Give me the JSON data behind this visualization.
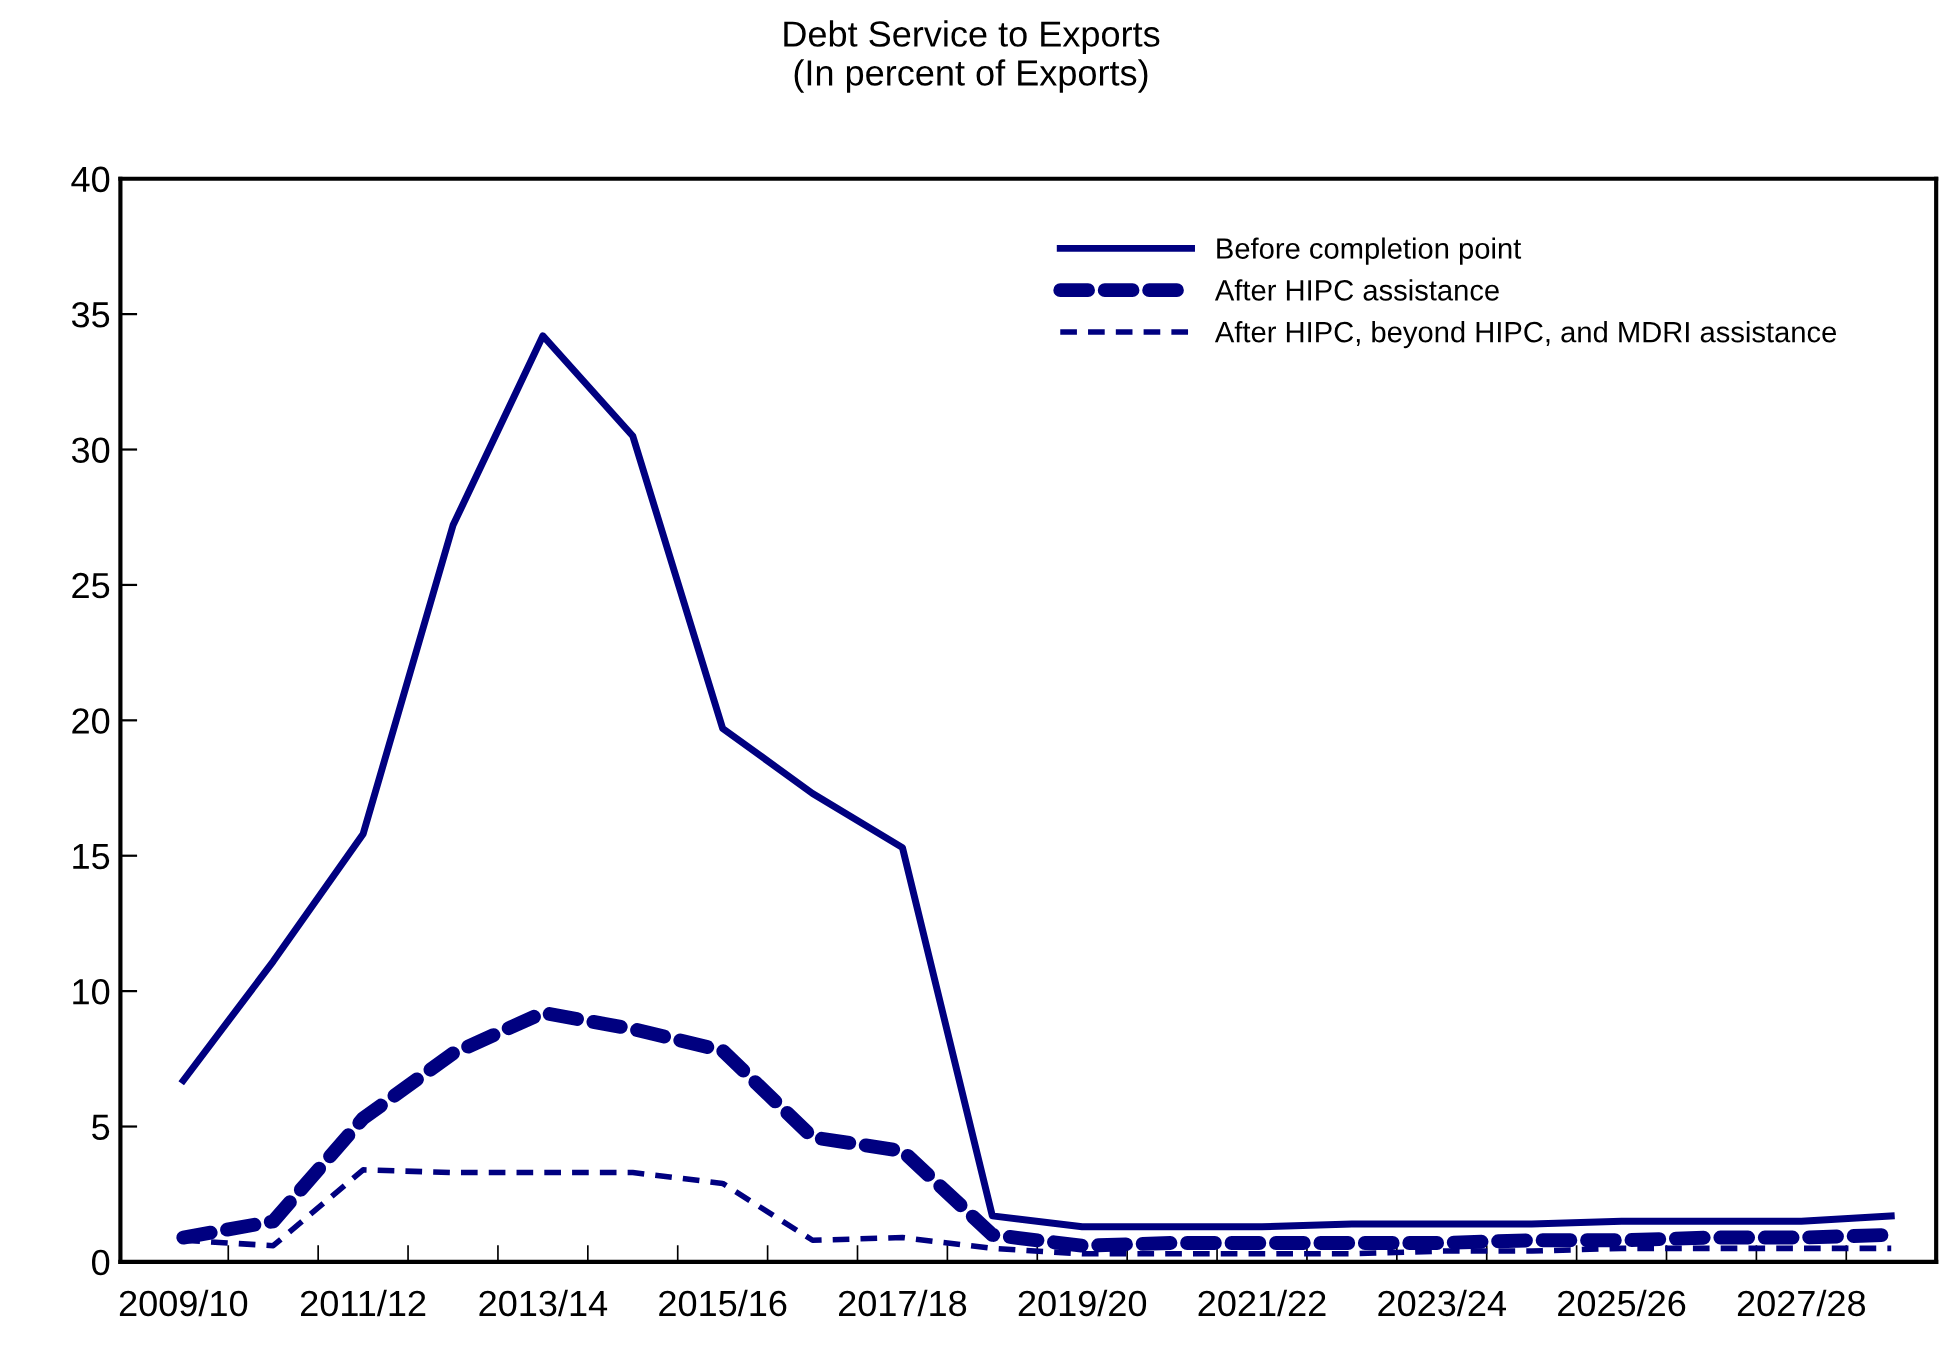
{
  "chart_data": {
    "type": "line",
    "title": "Debt Service to Exports\n(In percent of Exports)",
    "categories": [
      "2009/10",
      null,
      "2011/12",
      null,
      "2013/14",
      null,
      "2015/16",
      null,
      "2017/18",
      null,
      "2019/20",
      null,
      "2021/22",
      null,
      "2023/24",
      null,
      "2025/26",
      null,
      "2027/28",
      null
    ],
    "series": [
      {
        "name": "Before completion point",
        "color": "#000080",
        "line_style": "solid",
        "values": [
          6.7,
          11.1,
          15.8,
          27.2,
          34.2,
          30.5,
          19.7,
          17.3,
          15.3,
          1.7,
          1.3,
          1.3,
          1.3,
          1.4,
          1.4,
          1.4,
          1.5,
          1.5,
          1.5,
          1.7
        ]
      },
      {
        "name": "After HIPC assistance",
        "color": "#000080",
        "line_style": "dashed",
        "values": [
          0.9,
          1.5,
          5.3,
          7.7,
          9.2,
          8.6,
          7.8,
          4.6,
          4.1,
          1.0,
          0.6,
          0.7,
          0.7,
          0.7,
          0.7,
          0.8,
          0.8,
          0.9,
          0.9,
          1.0
        ]
      },
      {
        "name": "After HIPC, beyond HIPC, and MDRI assistance",
        "color": "#000080",
        "line_style": "dashed",
        "values": [
          0.8,
          0.6,
          3.4,
          3.3,
          3.3,
          3.3,
          2.9,
          0.8,
          0.9,
          0.5,
          0.3,
          0.3,
          0.3,
          0.3,
          0.4,
          0.4,
          0.5,
          0.5,
          0.5,
          0.5
        ]
      }
    ],
    "ylim": [
      0,
      40
    ],
    "yticks": [
      0,
      5,
      10,
      15,
      20,
      25,
      30,
      35,
      40
    ],
    "grid": false,
    "legend": "top right",
    "marker": "none"
  }
}
